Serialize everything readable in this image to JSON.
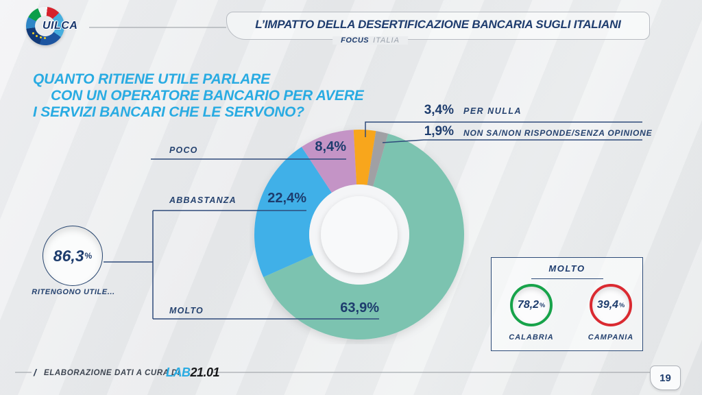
{
  "header": {
    "logo_text": "UILCA",
    "title": "L’IMPATTO DELLA DESERTIFICAZIONE BANCARIA SUGLI ITALIANI",
    "focus_label": "FOCUS",
    "focus_value": "ITALIA"
  },
  "question": {
    "line1": "QUANTO RITIENE UTILE PARLARE",
    "line2": "CON UN OPERATORE BANCARIO PER AVERE",
    "line3": "I SERVIZI BANCARI CHE LE SERVONO?"
  },
  "chart_data": {
    "type": "pie",
    "donut": true,
    "title": "QUANTO RITIENE UTILE PARLARE CON UN OPERATORE BANCARIO PER AVERE I SERVIZI BANCARI CHE LE SERVONO?",
    "rotation_deg": 16,
    "donut_hole_ratio": 0.48,
    "legend_position": "callouts",
    "slices": [
      {
        "label": "MOLTO",
        "value": 63.9,
        "display": "63,9%",
        "color": "#7cc3b0"
      },
      {
        "label": "ABBASTANZA",
        "value": 22.4,
        "display": "22,4%",
        "color": "#40b0e8"
      },
      {
        "label": "POCO",
        "value": 8.4,
        "display": "8,4%",
        "color": "#c494c6"
      },
      {
        "label": "PER NULLA",
        "value": 3.4,
        "display": "3,4%",
        "color": "#f8a61e"
      },
      {
        "label": "NON SA/NON RISPONDE/SENZA OPINIONE",
        "value": 1.9,
        "display": "1,9%",
        "color": "#a0a0a4"
      }
    ],
    "summary": {
      "value": "86,3",
      "unit": "%",
      "caption": "RITENGONO UTILE..."
    },
    "regional": {
      "title": "MOLTO",
      "items": [
        {
          "region": "CALABRIA",
          "value": "78,2",
          "unit": "%",
          "ring_color": "#17a34a"
        },
        {
          "region": "CAMPANIA",
          "value": "39,4",
          "unit": "%",
          "ring_color": "#da2a31"
        }
      ]
    }
  },
  "footer": {
    "slash": "/",
    "credit": "ELABORAZIONE DATI A CURA DI",
    "lab_blue": "LAB",
    "lab_dark": "21.01",
    "page": "19"
  },
  "colors": {
    "accent_cyan": "#29abe2",
    "navy": "#1e3c6e"
  }
}
